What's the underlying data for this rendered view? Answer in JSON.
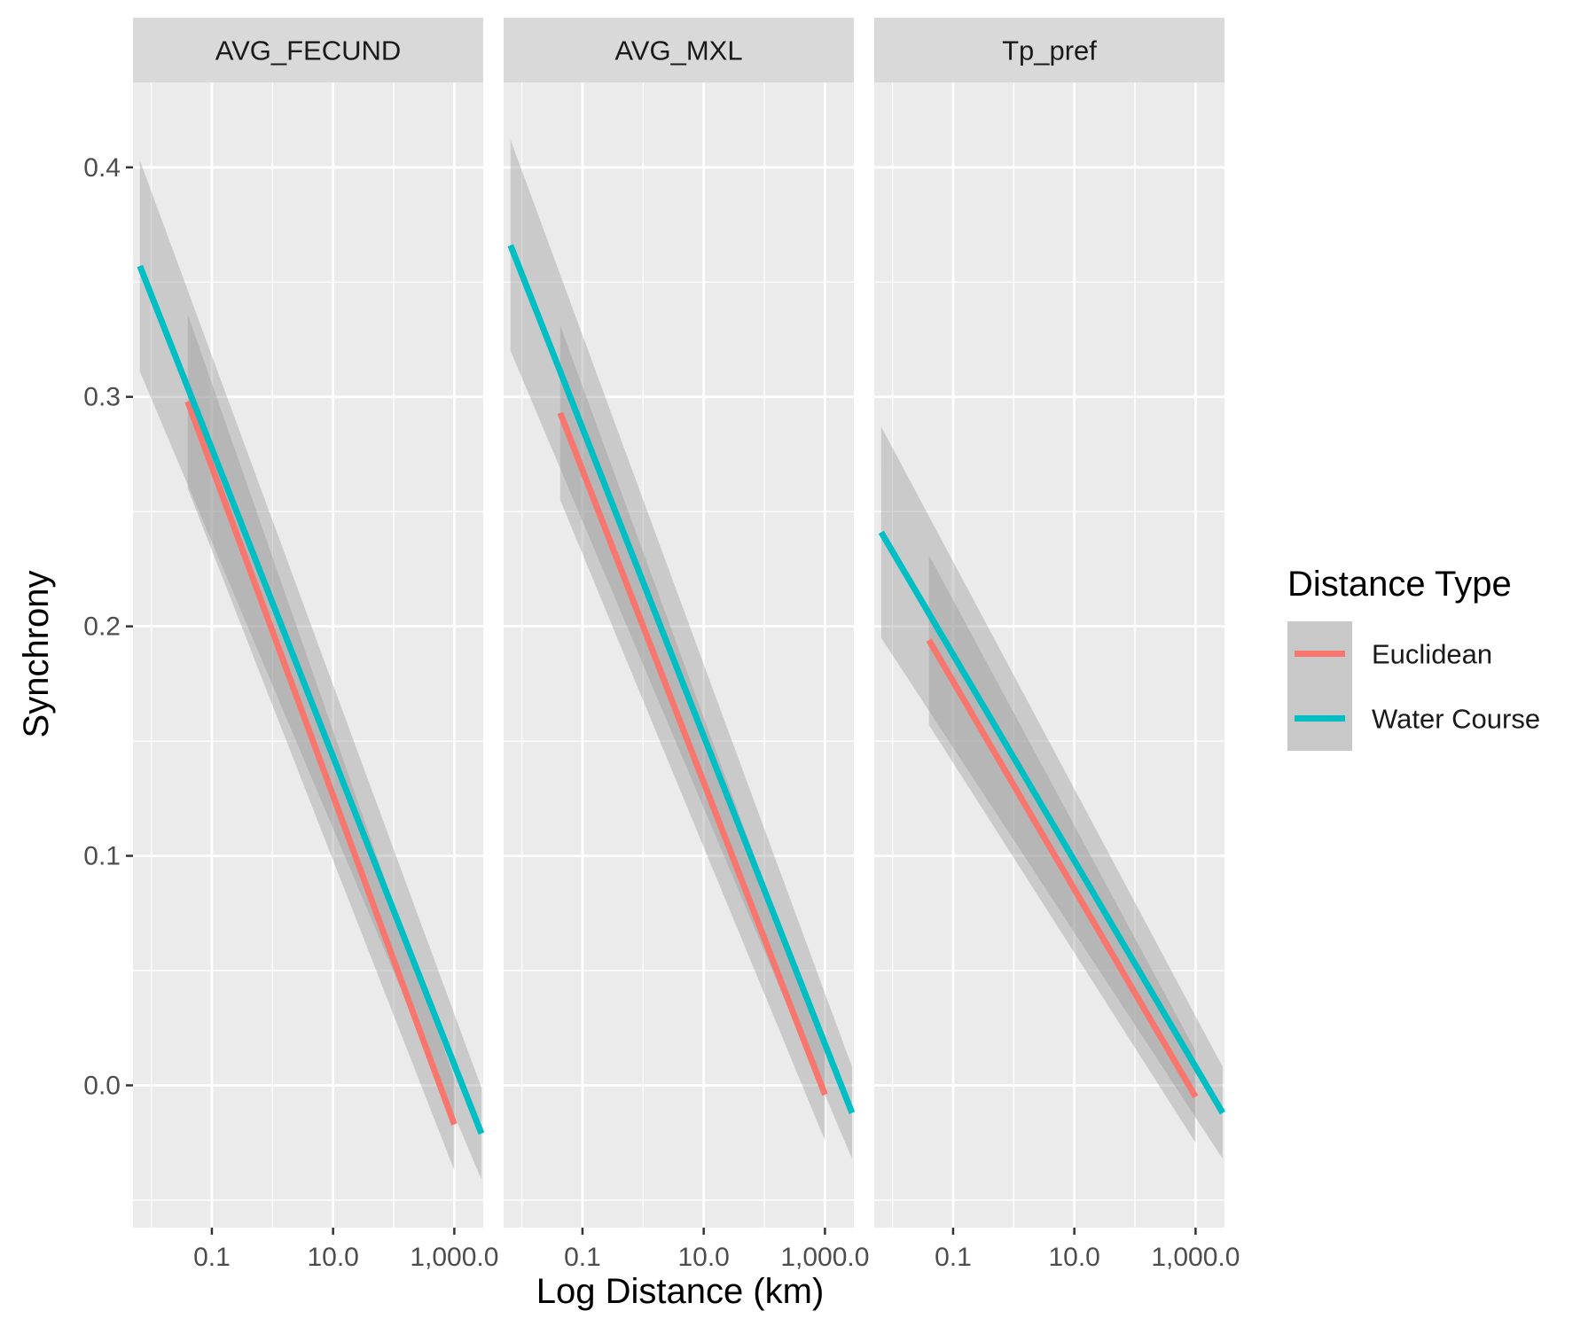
{
  "chart_data": {
    "type": "line",
    "xlabel": "Log Distance (km)",
    "ylabel": "Synchrony",
    "x_scale": "log10",
    "xlim": [
      0.005,
      3000
    ],
    "ylim": [
      -0.062,
      0.437
    ],
    "x_ticks": [
      0.1,
      10,
      1000
    ],
    "x_tick_labels": [
      "0.1",
      "10.0",
      "1,000.0"
    ],
    "y_ticks": [
      0.0,
      0.1,
      0.2,
      0.3,
      0.4
    ],
    "y_tick_labels": [
      "0.0",
      "0.1",
      "0.2",
      "0.3",
      "0.4"
    ],
    "grid": true,
    "legend": {
      "title": "Distance Type",
      "position": "right",
      "entries": [
        {
          "name": "Euclidean",
          "color": "#F8766D"
        },
        {
          "name": "Water Course",
          "color": "#00BFC4"
        }
      ]
    },
    "panels": [
      {
        "title": "AVG_FECUND",
        "series": [
          {
            "name": "Euclidean",
            "color": "#F8766D",
            "x": [
              0.04,
              1000
            ],
            "y": [
              0.298,
              -0.017
            ],
            "ci_width": [
              0.038,
              0.02
            ]
          },
          {
            "name": "Water Course",
            "color": "#00BFC4",
            "x": [
              0.0065,
              2800
            ],
            "y": [
              0.357,
              -0.021
            ],
            "ci_width": [
              0.046,
              0.02
            ]
          }
        ]
      },
      {
        "title": "AVG_MXL",
        "series": [
          {
            "name": "Euclidean",
            "color": "#F8766D",
            "x": [
              0.043,
              1000
            ],
            "y": [
              0.293,
              -0.004
            ],
            "ci_width": [
              0.038,
              0.02
            ]
          },
          {
            "name": "Water Course",
            "color": "#00BFC4",
            "x": [
              0.0065,
              2800
            ],
            "y": [
              0.366,
              -0.012
            ],
            "ci_width": [
              0.046,
              0.02
            ]
          }
        ]
      },
      {
        "title": "Tp_pref",
        "series": [
          {
            "name": "Euclidean",
            "color": "#F8766D",
            "x": [
              0.04,
              1000
            ],
            "y": [
              0.194,
              -0.005
            ],
            "ci_width": [
              0.037,
              0.02
            ]
          },
          {
            "name": "Water Course",
            "color": "#00BFC4",
            "x": [
              0.0065,
              2800
            ],
            "y": [
              0.241,
              -0.012
            ],
            "ci_width": [
              0.046,
              0.02
            ]
          }
        ]
      }
    ]
  }
}
